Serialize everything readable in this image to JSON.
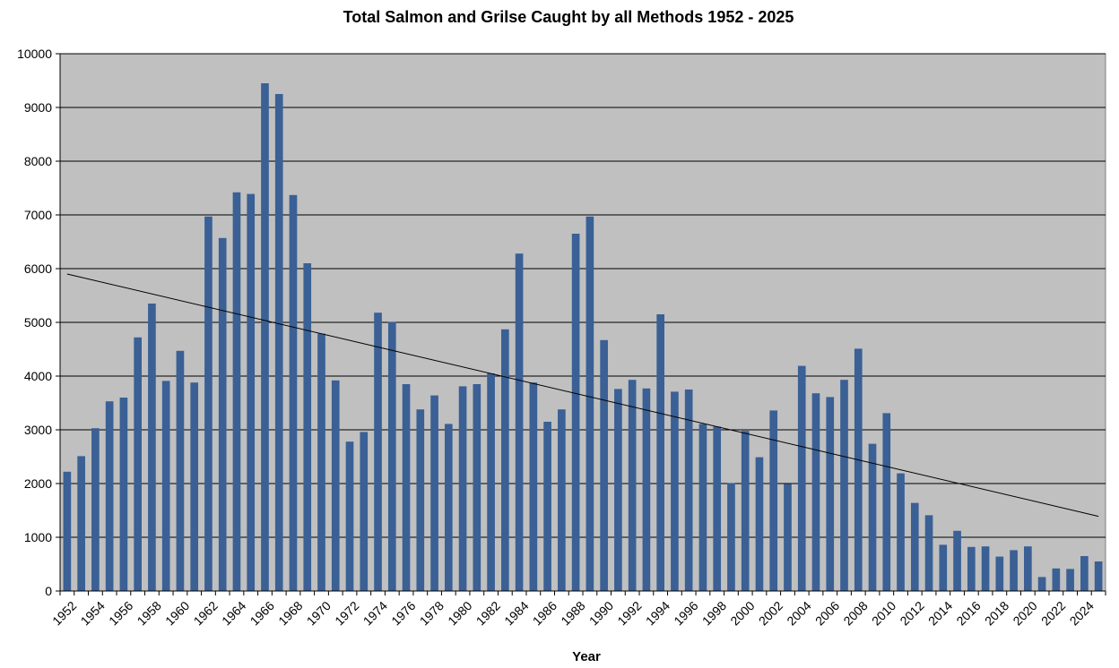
{
  "chart_data": {
    "type": "bar",
    "title": "Total Salmon and Grilse Caught by all Methods 1952 - 2025",
    "xlabel": "Year",
    "ylabel": "",
    "ylim": [
      0,
      10000
    ],
    "yticks": [
      0,
      1000,
      2000,
      3000,
      4000,
      5000,
      6000,
      7000,
      8000,
      9000,
      10000
    ],
    "grid": true,
    "legend": "none",
    "colors": {
      "plot_bg": "#c0c0c0",
      "bar": "#3a6095",
      "grid": "#000000",
      "trend": "#000000"
    },
    "categories": [
      "1952",
      "1953",
      "1954",
      "1955",
      "1956",
      "1957",
      "1958",
      "1959",
      "1960",
      "1961",
      "1962",
      "1963",
      "1964",
      "1965",
      "1966",
      "1967",
      "1968",
      "1969",
      "1970",
      "1971",
      "1972",
      "1973",
      "1974",
      "1975",
      "1976",
      "1977",
      "1978",
      "1979",
      "1980",
      "1981",
      "1982",
      "1983",
      "1984",
      "1985",
      "1986",
      "1987",
      "1988",
      "1989",
      "1990",
      "1991",
      "1992",
      "1993",
      "1994",
      "1995",
      "1996",
      "1997",
      "1998",
      "1999",
      "2000",
      "2001",
      "2002",
      "2003",
      "2004",
      "2005",
      "2006",
      "2007",
      "2008",
      "2009",
      "2010",
      "2011",
      "2012",
      "2013",
      "2014",
      "2015",
      "2016",
      "2017",
      "2018",
      "2019",
      "2020",
      "2021",
      "2022",
      "2023",
      "2024",
      "2025"
    ],
    "x_tick_labels": [
      "1952",
      "1954",
      "1956",
      "1958",
      "1960",
      "1962",
      "1964",
      "1966",
      "1968",
      "1970",
      "1972",
      "1974",
      "1976",
      "1978",
      "1980",
      "1982",
      "1984",
      "1986",
      "1988",
      "1990",
      "1992",
      "1994",
      "1996",
      "1998",
      "2000",
      "2002",
      "2004",
      "2006",
      "2008",
      "2010",
      "2012",
      "2014",
      "2016",
      "2018",
      "2020",
      "2022",
      "2024"
    ],
    "values": [
      2220,
      2510,
      3030,
      3530,
      3600,
      4720,
      5350,
      3910,
      4470,
      3880,
      6970,
      6570,
      7420,
      7390,
      9450,
      9250,
      7370,
      6100,
      4790,
      3920,
      2780,
      2960,
      5180,
      5010,
      3850,
      3380,
      3640,
      3110,
      3810,
      3850,
      4050,
      4870,
      6280,
      3880,
      3150,
      3380,
      6650,
      6970,
      4670,
      3760,
      3930,
      3770,
      5150,
      3710,
      3750,
      3110,
      3060,
      2010,
      2980,
      2490,
      3360,
      1990,
      4190,
      3680,
      3610,
      3930,
      4510,
      2740,
      3310,
      2190,
      1640,
      1410,
      860,
      1120,
      820,
      830,
      640,
      760,
      830,
      260,
      420,
      410,
      650,
      550
    ],
    "trendline": {
      "type": "linear",
      "start": 5900,
      "end": 1390
    }
  }
}
